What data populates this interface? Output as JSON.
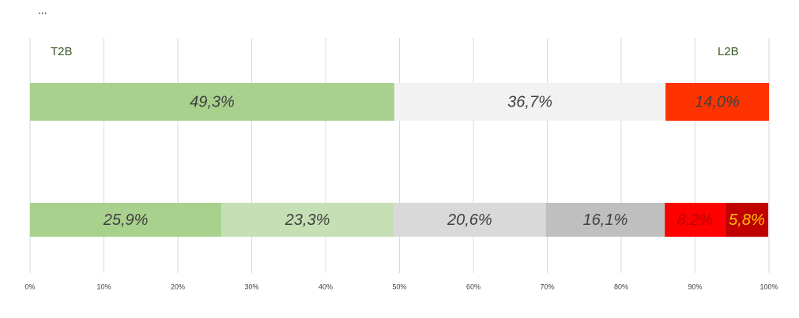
{
  "chart_data": {
    "type": "stacked-bar",
    "title": "...",
    "annotations": [
      "T2B",
      "L2B"
    ],
    "xlim": [
      0,
      100
    ],
    "xticks": [
      {
        "value": 0,
        "label": "0%"
      },
      {
        "value": 10,
        "label": "10%"
      },
      {
        "value": 20,
        "label": "20%"
      },
      {
        "value": 30,
        "label": "30%"
      },
      {
        "value": 40,
        "label": "40%"
      },
      {
        "value": 50,
        "label": "50%"
      },
      {
        "value": 60,
        "label": "60%"
      },
      {
        "value": 70,
        "label": "70%"
      },
      {
        "value": 80,
        "label": "80%"
      },
      {
        "value": 90,
        "label": "90%"
      },
      {
        "value": 100,
        "label": "100%"
      }
    ],
    "grid": true,
    "rows": [
      {
        "values": [
          49.3,
          36.7,
          14.0
        ],
        "value_labels": [
          "49,3%",
          "36,7%",
          "14,0%"
        ],
        "colors": [
          "#a9d18e",
          "#f2f2f2",
          "#ff3300"
        ],
        "label_colors": [
          "#404040",
          "#404040",
          "#404040"
        ]
      },
      {
        "values": [
          25.9,
          23.3,
          20.6,
          16.1,
          8.2,
          5.8
        ],
        "value_labels": [
          "25,9%",
          "23,3%",
          "20,6%",
          "16,1%",
          "8,2%",
          "5,8%"
        ],
        "colors": [
          "#a9d18e",
          "#c5e0b4",
          "#d9d9d9",
          "#bfbfbf",
          "#ff0000",
          "#c00000"
        ],
        "label_colors": [
          "#404040",
          "#404040",
          "#404040",
          "#404040",
          "#c00000",
          "#ffc000"
        ]
      }
    ]
  }
}
